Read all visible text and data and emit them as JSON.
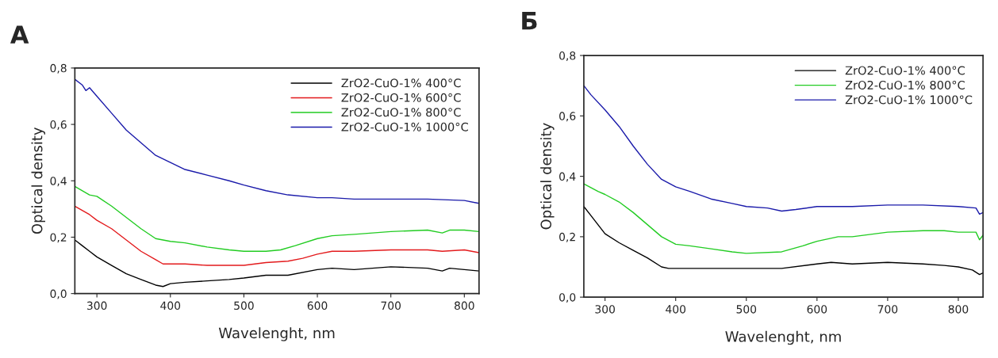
{
  "chart_data": [
    {
      "type": "line",
      "title": "А",
      "xlabel": "Wavelenght, nm",
      "ylabel": "Optical density",
      "xlim": [
        270,
        820
      ],
      "xticks": [
        300,
        400,
        500,
        600,
        700,
        800
      ],
      "ylim": [
        0,
        0.8
      ],
      "yticks": [
        {
          "value": 0,
          "label": "0,0"
        },
        {
          "value": 0.2,
          "label": "0,2"
        },
        {
          "value": 0.4,
          "label": "0,4"
        },
        {
          "value": 0.6,
          "label": "0,6"
        },
        {
          "value": 0.8,
          "label": "0,8"
        }
      ],
      "grid": false,
      "legend": "top right",
      "series": [
        {
          "name": "ZrO2-CuO-1% 400°C",
          "color": "#000000",
          "x": [
            270,
            280,
            290,
            300,
            320,
            340,
            360,
            380,
            390,
            400,
            420,
            450,
            480,
            500,
            530,
            560,
            600,
            620,
            650,
            700,
            750,
            770,
            780,
            800,
            820
          ],
          "values": [
            0.19,
            0.17,
            0.15,
            0.13,
            0.1,
            0.07,
            0.05,
            0.03,
            0.025,
            0.035,
            0.04,
            0.045,
            0.05,
            0.055,
            0.065,
            0.065,
            0.085,
            0.09,
            0.085,
            0.095,
            0.09,
            0.08,
            0.09,
            0.085,
            0.08
          ]
        },
        {
          "name": "ZrO2-CuO-1% 600°C",
          "color": "#e31a1c",
          "x": [
            270,
            290,
            300,
            320,
            340,
            360,
            380,
            390,
            400,
            420,
            450,
            480,
            500,
            530,
            560,
            580,
            600,
            620,
            650,
            700,
            750,
            770,
            800,
            820
          ],
          "values": [
            0.31,
            0.28,
            0.26,
            0.23,
            0.19,
            0.15,
            0.12,
            0.105,
            0.105,
            0.105,
            0.1,
            0.1,
            0.1,
            0.11,
            0.115,
            0.125,
            0.14,
            0.15,
            0.15,
            0.155,
            0.155,
            0.15,
            0.155,
            0.145
          ]
        },
        {
          "name": "ZrO2-CuO-1% 800°C",
          "color": "#22cc22",
          "x": [
            270,
            290,
            300,
            320,
            340,
            360,
            380,
            400,
            420,
            450,
            480,
            500,
            530,
            550,
            570,
            600,
            620,
            650,
            700,
            750,
            770,
            780,
            800,
            820
          ],
          "values": [
            0.38,
            0.35,
            0.345,
            0.31,
            0.27,
            0.23,
            0.195,
            0.185,
            0.18,
            0.165,
            0.155,
            0.15,
            0.15,
            0.155,
            0.17,
            0.195,
            0.205,
            0.21,
            0.22,
            0.225,
            0.215,
            0.225,
            0.225,
            0.22
          ]
        },
        {
          "name": "ZrO2-CuO-1% 1000°C",
          "color": "#1a1aaa",
          "x": [
            270,
            280,
            285,
            290,
            300,
            320,
            340,
            360,
            380,
            400,
            420,
            450,
            480,
            500,
            530,
            560,
            600,
            620,
            650,
            700,
            750,
            800,
            820
          ],
          "values": [
            0.76,
            0.74,
            0.72,
            0.73,
            0.7,
            0.64,
            0.58,
            0.535,
            0.49,
            0.465,
            0.44,
            0.42,
            0.4,
            0.385,
            0.365,
            0.35,
            0.34,
            0.34,
            0.335,
            0.335,
            0.335,
            0.33,
            0.32
          ]
        }
      ]
    },
    {
      "type": "line",
      "title": "Б",
      "xlabel": "Wavelenght, nm",
      "ylabel": "Optical density",
      "xlim": [
        270,
        835
      ],
      "xticks": [
        300,
        400,
        500,
        600,
        700,
        800
      ],
      "ylim": [
        0,
        0.8
      ],
      "yticks": [
        {
          "value": 0,
          "label": "0,0"
        },
        {
          "value": 0.2,
          "label": "0,2"
        },
        {
          "value": 0.4,
          "label": "0,4"
        },
        {
          "value": 0.6,
          "label": "0,6"
        },
        {
          "value": 0.8,
          "label": "0,8"
        }
      ],
      "grid": false,
      "legend": "top right",
      "series": [
        {
          "name": "ZrO2-CuO-1% 400°C",
          "color": "#000000",
          "x": [
            270,
            280,
            290,
            300,
            320,
            340,
            360,
            380,
            390,
            400,
            450,
            500,
            550,
            600,
            620,
            650,
            700,
            750,
            780,
            800,
            820,
            830,
            835
          ],
          "values": [
            0.3,
            0.27,
            0.24,
            0.21,
            0.18,
            0.155,
            0.13,
            0.1,
            0.095,
            0.095,
            0.095,
            0.095,
            0.095,
            0.11,
            0.115,
            0.11,
            0.115,
            0.11,
            0.105,
            0.1,
            0.09,
            0.075,
            0.08
          ]
        },
        {
          "name": "ZrO2-CuO-1% 800°C",
          "color": "#22cc22",
          "x": [
            270,
            290,
            300,
            320,
            340,
            360,
            380,
            400,
            420,
            450,
            480,
            500,
            550,
            580,
            600,
            630,
            650,
            700,
            750,
            780,
            800,
            825,
            830,
            835
          ],
          "values": [
            0.375,
            0.35,
            0.34,
            0.315,
            0.28,
            0.24,
            0.2,
            0.175,
            0.17,
            0.16,
            0.15,
            0.145,
            0.15,
            0.17,
            0.185,
            0.2,
            0.2,
            0.215,
            0.22,
            0.22,
            0.215,
            0.215,
            0.19,
            0.205
          ]
        },
        {
          "name": "ZrO2-CuO-1% 1000°C",
          "color": "#1a1aaa",
          "x": [
            270,
            280,
            300,
            320,
            340,
            360,
            380,
            400,
            420,
            450,
            480,
            500,
            530,
            550,
            570,
            600,
            650,
            700,
            750,
            800,
            825,
            830,
            835
          ],
          "values": [
            0.7,
            0.67,
            0.62,
            0.565,
            0.5,
            0.44,
            0.39,
            0.365,
            0.35,
            0.325,
            0.31,
            0.3,
            0.295,
            0.285,
            0.29,
            0.3,
            0.3,
            0.305,
            0.305,
            0.3,
            0.295,
            0.275,
            0.28
          ]
        }
      ]
    }
  ]
}
